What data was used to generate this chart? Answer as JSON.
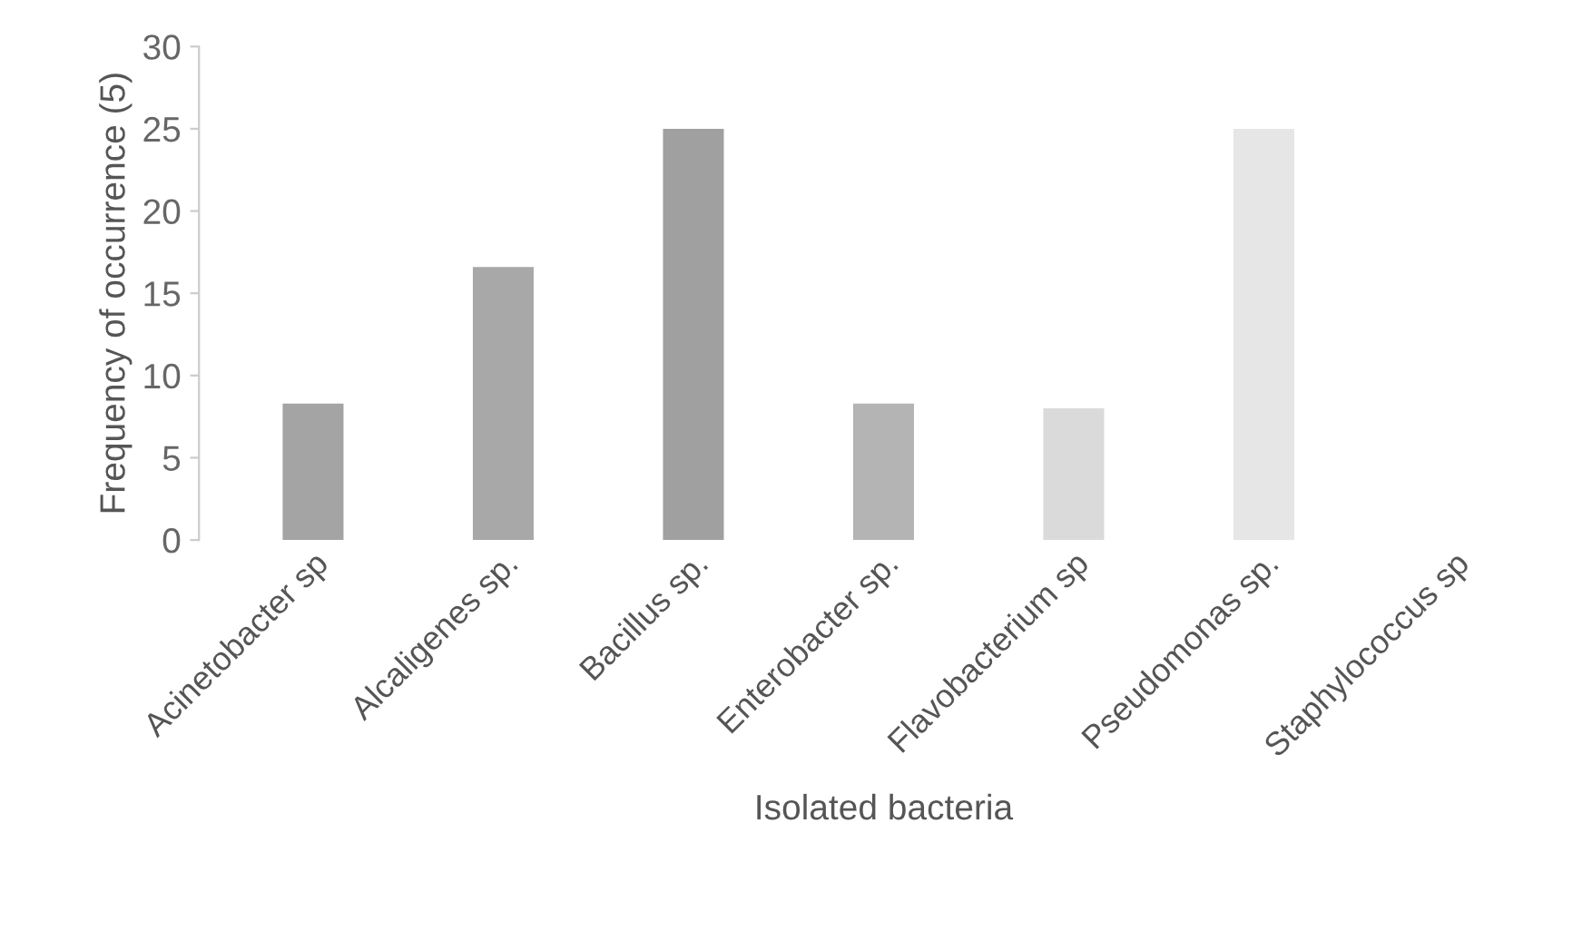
{
  "chart_data": {
    "type": "bar",
    "xlabel": "Isolated bacteria",
    "ylabel": "Frequency of occurrence (5)",
    "categories": [
      "Acinetobacter sp",
      "Alcaligenes sp.",
      "Bacillus sp.",
      "Enterobacter sp.",
      "Flavobacterium sp",
      "Pseudomonas sp.",
      "Staphylococcus sp"
    ],
    "values": [
      8.3,
      16.6,
      25,
      8.3,
      8,
      25,
      null
    ],
    "colors": [
      "#a4a4a4",
      "#a8a8a8",
      "#a0a0a0",
      "#b4b4b4",
      "#dadada",
      "#e6e6e6",
      "#ffffff"
    ],
    "ylim": [
      0,
      30
    ],
    "yticks": [
      0,
      5,
      10,
      15,
      20,
      25,
      30
    ],
    "grid": false
  }
}
